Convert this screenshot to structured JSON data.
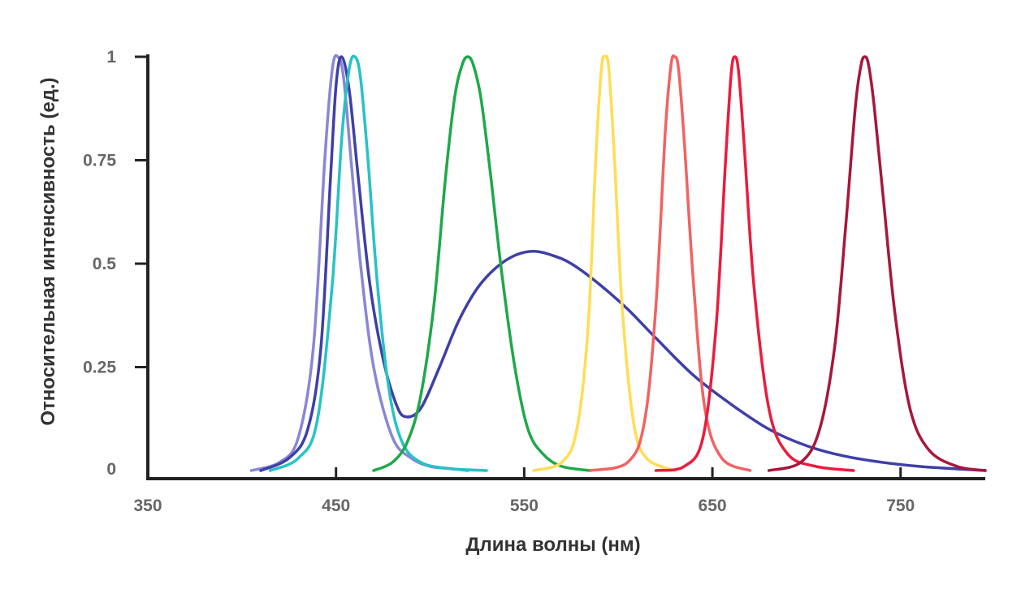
{
  "chart_data": {
    "type": "line",
    "title": "",
    "xlabel": "Длина волны (нм)",
    "ylabel": "Относительная интенсивность (ед.)",
    "xlim": [
      350,
      795
    ],
    "ylim": [
      0,
      1
    ],
    "x_ticks": [
      "350",
      "450",
      "550",
      "650",
      "750"
    ],
    "y_ticks": [
      "0",
      "0.25",
      "0.5",
      "0.75",
      "1"
    ],
    "grid": false,
    "legend": "none",
    "series": [
      {
        "color": "#8A86D6",
        "x": [
          405,
          420,
          430,
          438,
          444,
          448,
          451,
          454,
          458,
          463,
          470,
          480,
          490,
          500,
          510,
          520
        ],
        "y": [
          0.0,
          0.02,
          0.08,
          0.3,
          0.75,
          0.97,
          1.0,
          0.95,
          0.75,
          0.5,
          0.25,
          0.08,
          0.03,
          0.01,
          0.005,
          0.0
        ]
      },
      {
        "color": "#3F3FA8",
        "x": [
          410,
          425,
          435,
          442,
          447,
          450,
          453,
          457,
          462,
          468,
          475,
          482,
          487,
          495,
          505,
          515,
          525,
          535,
          545,
          555,
          565,
          575,
          590,
          605,
          620,
          640,
          660,
          680,
          700,
          720,
          740,
          760,
          780,
          795
        ],
        "y": [
          0.0,
          0.03,
          0.1,
          0.3,
          0.7,
          0.93,
          1.0,
          0.92,
          0.7,
          0.45,
          0.27,
          0.16,
          0.13,
          0.15,
          0.25,
          0.36,
          0.44,
          0.49,
          0.52,
          0.53,
          0.52,
          0.5,
          0.45,
          0.39,
          0.32,
          0.23,
          0.16,
          0.1,
          0.06,
          0.035,
          0.02,
          0.01,
          0.004,
          0.0
        ]
      },
      {
        "color": "#27C2C6",
        "x": [
          415,
          430,
          440,
          448,
          453,
          457,
          460,
          463,
          467,
          472,
          478,
          485,
          495,
          510,
          530
        ],
        "y": [
          0.0,
          0.03,
          0.12,
          0.45,
          0.8,
          0.97,
          1.0,
          0.95,
          0.75,
          0.45,
          0.2,
          0.07,
          0.02,
          0.005,
          0.0
        ]
      },
      {
        "color": "#1FA84A",
        "x": [
          470,
          480,
          488,
          495,
          502,
          508,
          513,
          517,
          520,
          523,
          527,
          532,
          538,
          545,
          552,
          560,
          570,
          585
        ],
        "y": [
          0.0,
          0.02,
          0.07,
          0.18,
          0.4,
          0.7,
          0.9,
          0.98,
          1.0,
          0.98,
          0.9,
          0.72,
          0.48,
          0.25,
          0.1,
          0.04,
          0.01,
          0.0
        ]
      },
      {
        "color": "#FFDD55",
        "x": [
          555,
          570,
          578,
          584,
          588,
          591,
          593,
          595,
          598,
          602,
          608,
          615,
          630
        ],
        "y": [
          0.0,
          0.02,
          0.1,
          0.35,
          0.75,
          0.97,
          1.0,
          0.97,
          0.75,
          0.4,
          0.12,
          0.03,
          0.0
        ]
      },
      {
        "color": "#F26262",
        "x": [
          585,
          605,
          614,
          620,
          625,
          628,
          630,
          632,
          635,
          640,
          646,
          655,
          670
        ],
        "y": [
          0.0,
          0.02,
          0.12,
          0.4,
          0.82,
          0.98,
          1.0,
          0.97,
          0.8,
          0.45,
          0.15,
          0.03,
          0.0
        ]
      },
      {
        "color": "#EC1B3C",
        "x": [
          620,
          635,
          645,
          652,
          657,
          660,
          662,
          664,
          667,
          672,
          680,
          690,
          705,
          725
        ],
        "y": [
          0.0,
          0.01,
          0.08,
          0.35,
          0.75,
          0.96,
          1.0,
          0.96,
          0.78,
          0.45,
          0.15,
          0.04,
          0.01,
          0.0
        ]
      },
      {
        "color": "#A8173A",
        "x": [
          680,
          697,
          707,
          715,
          721,
          726,
          729,
          731,
          733,
          736,
          741,
          747,
          755,
          765,
          780,
          795
        ],
        "y": [
          0.0,
          0.02,
          0.1,
          0.3,
          0.6,
          0.88,
          0.98,
          1.0,
          0.98,
          0.88,
          0.65,
          0.38,
          0.15,
          0.05,
          0.01,
          0.0
        ]
      }
    ]
  }
}
